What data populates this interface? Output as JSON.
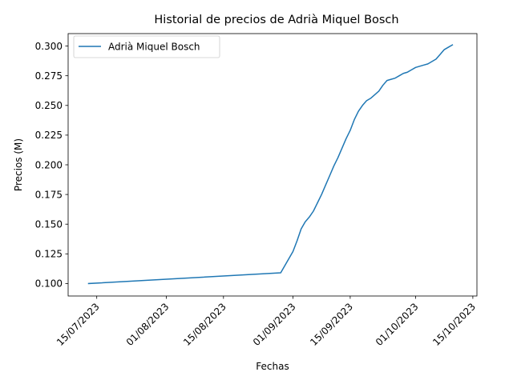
{
  "chart_data": {
    "type": "line",
    "title": "Historial de precios de Adrià Miquel Bosch",
    "xlabel": "Fechas",
    "ylabel": "Precios (M)",
    "xlim": [
      "2023-07-08",
      "2023-10-16"
    ],
    "ylim": [
      0.0895,
      0.3105
    ],
    "x_ticks": [
      "2023-07-15",
      "2023-08-01",
      "2023-08-15",
      "2023-09-01",
      "2023-09-15",
      "2023-10-01",
      "2023-10-15"
    ],
    "x_tick_labels": [
      "15/07/2023",
      "01/08/2023",
      "15/08/2023",
      "01/09/2023",
      "15/09/2023",
      "01/10/2023",
      "15/10/2023"
    ],
    "y_ticks": [
      0.1,
      0.125,
      0.15,
      0.175,
      0.2,
      0.225,
      0.25,
      0.275,
      0.3
    ],
    "y_tick_labels": [
      "0.100",
      "0.125",
      "0.150",
      "0.175",
      "0.200",
      "0.225",
      "0.250",
      "0.275",
      "0.300"
    ],
    "grid": false,
    "legend_position": "top-left",
    "series": [
      {
        "name": "Adrià Miquel Bosch",
        "color": "#1f77b4",
        "x": [
          "2023-07-13",
          "2023-08-29",
          "2023-09-01",
          "2023-09-02",
          "2023-09-03",
          "2023-09-04",
          "2023-09-05",
          "2023-09-06",
          "2023-09-07",
          "2023-09-08",
          "2023-09-09",
          "2023-09-10",
          "2023-09-11",
          "2023-09-12",
          "2023-09-13",
          "2023-09-14",
          "2023-09-15",
          "2023-09-16",
          "2023-09-17",
          "2023-09-18",
          "2023-09-19",
          "2023-09-20",
          "2023-09-21",
          "2023-09-22",
          "2023-09-23",
          "2023-09-24",
          "2023-09-25",
          "2023-09-26",
          "2023-09-27",
          "2023-09-28",
          "2023-09-29",
          "2023-09-30",
          "2023-10-01",
          "2023-10-02",
          "2023-10-03",
          "2023-10-04",
          "2023-10-05",
          "2023-10-06",
          "2023-10-07",
          "2023-10-08",
          "2023-10-09",
          "2023-10-10"
        ],
        "y": [
          0.1,
          0.109,
          0.127,
          0.136,
          0.146,
          0.152,
          0.156,
          0.161,
          0.168,
          0.175,
          0.183,
          0.191,
          0.199,
          0.206,
          0.214,
          0.222,
          0.229,
          0.238,
          0.245,
          0.25,
          0.254,
          0.256,
          0.259,
          0.262,
          0.267,
          0.271,
          0.272,
          0.273,
          0.275,
          0.277,
          0.278,
          0.28,
          0.282,
          0.283,
          0.284,
          0.285,
          0.287,
          0.289,
          0.293,
          0.297,
          0.299,
          0.301
        ]
      }
    ]
  }
}
